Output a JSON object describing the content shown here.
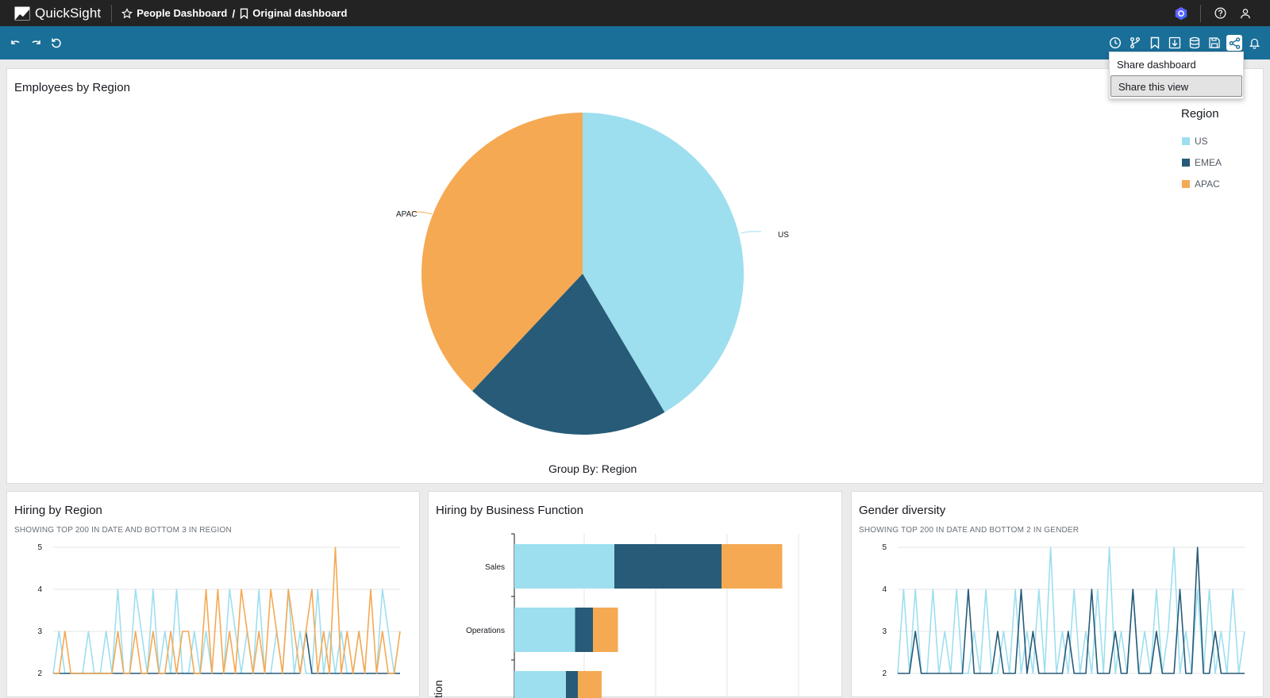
{
  "app": {
    "name": "QuickSight"
  },
  "breadcrumb": {
    "parent": "People Dashboard",
    "separator": "/",
    "current": "Original dashboard"
  },
  "toolbar": {
    "left_icons": [
      "undo-icon",
      "redo-icon",
      "reset-icon"
    ],
    "right_icons": [
      "schedule-icon",
      "branch-icon",
      "bookmark-icon",
      "download-icon",
      "data-icon",
      "save-icon",
      "share-icon",
      "alert-icon"
    ]
  },
  "share_menu": {
    "items": [
      "Share dashboard",
      "Share this view"
    ],
    "selected": "Share this view"
  },
  "visuals": {
    "employees_by_region": {
      "title": "Employees by Region",
      "group_by": "Group By: Region",
      "legend_title": "Region",
      "legend": [
        "US",
        "EMEA",
        "APAC"
      ],
      "slice_labels": {
        "us": "US",
        "apac": "APAC"
      }
    },
    "hiring_by_region": {
      "title": "Hiring by Region",
      "subtitle": "SHOWING TOP 200 IN DATE AND BOTTOM 3 IN REGION",
      "yticks": [
        "5",
        "4",
        "3",
        "2"
      ]
    },
    "hiring_by_function": {
      "title": "Hiring by Business Function",
      "categories": [
        "Sales",
        "Operations"
      ],
      "axis_label_partial": "tion"
    },
    "gender_diversity": {
      "title": "Gender diversity",
      "subtitle": "SHOWING TOP 200 IN DATE AND BOTTOM 2 IN GENDER",
      "yticks": [
        "5",
        "4",
        "3",
        "2"
      ]
    }
  },
  "colors": {
    "us": "#9ddfef",
    "emea": "#275b78",
    "apac": "#f5a953",
    "toolbar": "#1a6f99",
    "topbar": "#232323"
  },
  "chart_data": [
    {
      "type": "pie",
      "title": "Employees by Region",
      "categories": [
        "US",
        "EMEA",
        "APAC"
      ],
      "values": [
        41.5,
        20.5,
        38.0
      ],
      "xlabel": "Group By: Region"
    },
    {
      "type": "line",
      "title": "Hiring by Region",
      "ylim": [
        2,
        5
      ],
      "series": [
        {
          "name": "US",
          "values": [
            2,
            3,
            2,
            2,
            2,
            2,
            3,
            2,
            2,
            3,
            2,
            4,
            2,
            2,
            4,
            3,
            2,
            4,
            2,
            3,
            2,
            4,
            2,
            2,
            3,
            2,
            3,
            2,
            2,
            2,
            4,
            3,
            2,
            3,
            2,
            4,
            2,
            2,
            3,
            2,
            4,
            2,
            3,
            2,
            2,
            4,
            2,
            3,
            2,
            3,
            2,
            2,
            3,
            2,
            2,
            2,
            4,
            3,
            2,
            2
          ]
        },
        {
          "name": "EMEA",
          "values": [
            2,
            2,
            2,
            2,
            2,
            2,
            2,
            2,
            2,
            2,
            2,
            2,
            2,
            2,
            2,
            2,
            2,
            2,
            2,
            2,
            2,
            2,
            2,
            2,
            2,
            2,
            2,
            2,
            2,
            2,
            2,
            2,
            2,
            2,
            2,
            2,
            2,
            2,
            2,
            2,
            2,
            2,
            2,
            3,
            2,
            2,
            2,
            2,
            2,
            2,
            2,
            2,
            2,
            2,
            2,
            2,
            2,
            2,
            2,
            2
          ]
        },
        {
          "name": "APAC",
          "values": [
            2,
            2,
            3,
            2,
            2,
            2,
            2,
            2,
            2,
            2,
            2,
            3,
            2,
            2,
            3,
            2,
            2,
            3,
            2,
            2,
            3,
            2,
            3,
            3,
            2,
            2,
            4,
            2,
            4,
            2,
            3,
            2,
            4,
            3,
            2,
            3,
            2,
            4,
            3,
            2,
            4,
            3,
            2,
            3,
            4,
            2,
            3,
            2,
            5,
            2,
            3,
            2,
            3,
            2,
            4,
            2,
            3,
            2,
            2,
            3
          ]
        }
      ]
    },
    {
      "type": "bar",
      "title": "Hiring by Business Function",
      "categories": [
        "Sales",
        "Operations"
      ],
      "series": [
        {
          "name": "US",
          "values": [
            14,
            8.5
          ]
        },
        {
          "name": "EMEA",
          "values": [
            15,
            2.5
          ]
        },
        {
          "name": "APAC",
          "values": [
            8.5,
            3.5
          ]
        }
      ]
    },
    {
      "type": "line",
      "title": "Gender diversity",
      "ylim": [
        2,
        5
      ],
      "series": [
        {
          "values": [
            2,
            4,
            2,
            4,
            2,
            2,
            4,
            2,
            3,
            2,
            4,
            2,
            2,
            3,
            2,
            4,
            2,
            2,
            3,
            2,
            4,
            2,
            3,
            2,
            4,
            2,
            5,
            2,
            3,
            2,
            4,
            2,
            3,
            2,
            4,
            2,
            5,
            2,
            3,
            2,
            4,
            2,
            3,
            2,
            4,
            2,
            3,
            5,
            2,
            3,
            2,
            4,
            2,
            4,
            2,
            3,
            2,
            4,
            2,
            3
          ]
        },
        {
          "values": [
            2,
            2,
            2,
            3,
            2,
            2,
            2,
            2,
            2,
            2,
            2,
            2,
            4,
            2,
            2,
            2,
            2,
            3,
            2,
            2,
            2,
            4,
            2,
            3,
            2,
            2,
            2,
            2,
            2,
            3,
            2,
            2,
            2,
            4,
            2,
            2,
            2,
            3,
            2,
            2,
            4,
            2,
            2,
            2,
            3,
            2,
            2,
            2,
            4,
            2,
            2,
            5,
            2,
            2,
            3,
            2,
            2,
            2,
            2,
            2
          ]
        }
      ]
    }
  ]
}
